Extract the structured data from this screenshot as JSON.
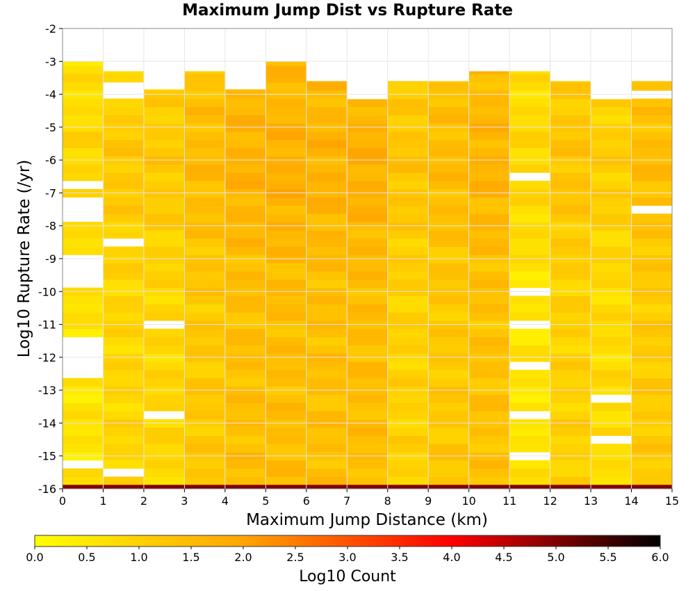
{
  "chart_data": {
    "type": "heatmap",
    "title": "Maximum Jump Dist vs Rupture Rate",
    "xlabel": "Maximum Jump Distance (km)",
    "ylabel": "Log10 Rupture Rate (/yr)",
    "xlim": [
      0,
      15
    ],
    "ylim": [
      -16,
      -2
    ],
    "x_ticks": [
      "0",
      "1",
      "2",
      "3",
      "4",
      "5",
      "6",
      "7",
      "8",
      "9",
      "10",
      "11",
      "12",
      "13",
      "14",
      "15"
    ],
    "y_ticks": [
      "-2",
      "-3",
      "-4",
      "-5",
      "-6",
      "-7",
      "-8",
      "-9",
      "-10",
      "-11",
      "-12",
      "-13",
      "-14",
      "-15",
      "-16"
    ],
    "x_bin_width": 1,
    "y_bin_height": 0.25,
    "colorbar": {
      "label": "Log10 Count",
      "range": [
        0,
        6
      ],
      "ticks": [
        "0.0",
        "0.5",
        "1.0",
        "1.5",
        "2.0",
        "2.5",
        "3.0",
        "3.5",
        "4.0",
        "4.5",
        "5.0",
        "5.5",
        "6.0"
      ],
      "colors": [
        "#ffff00",
        "#ffa500",
        "#ff0000",
        "#000000"
      ]
    },
    "bottom_row": {
      "y_range": [
        -16,
        -15.88
      ],
      "value": 5.0
    },
    "columns": [
      {
        "x_range": [
          0,
          1
        ],
        "top": -3.0,
        "base": 0.6,
        "empty": [
          [
            -6.7,
            -6.95
          ],
          [
            -7.2,
            -7.8
          ],
          [
            -8.95,
            -9.85
          ],
          [
            -11.5,
            -12.7
          ],
          [
            -15.1,
            -15.35
          ]
        ]
      },
      {
        "x_range": [
          1,
          2
        ],
        "top": -3.3,
        "base": 0.9,
        "empty": [
          [
            -3.6,
            -4.1
          ],
          [
            -8.4,
            -8.65
          ],
          [
            -15.5,
            -15.75
          ]
        ]
      },
      {
        "x_range": [
          2,
          3
        ],
        "top": -3.85,
        "base": 0.9,
        "empty": [
          [
            -10.8,
            -11.05
          ],
          [
            -13.6,
            -13.85
          ]
        ]
      },
      {
        "x_range": [
          3,
          4
        ],
        "top": -3.3,
        "base": 1.2,
        "empty": []
      },
      {
        "x_range": [
          4,
          5
        ],
        "top": -3.85,
        "base": 1.4,
        "empty": []
      },
      {
        "x_range": [
          5,
          6
        ],
        "top": -3.0,
        "base": 1.45,
        "empty": []
      },
      {
        "x_range": [
          6,
          7
        ],
        "top": -3.6,
        "base": 1.4,
        "empty": []
      },
      {
        "x_range": [
          7,
          8
        ],
        "top": -4.15,
        "base": 1.45,
        "empty": []
      },
      {
        "x_range": [
          8,
          9
        ],
        "top": -3.6,
        "base": 1.0,
        "empty": []
      },
      {
        "x_range": [
          9,
          10
        ],
        "top": -3.6,
        "base": 1.2,
        "empty": []
      },
      {
        "x_range": [
          10,
          11
        ],
        "top": -3.3,
        "base": 1.35,
        "empty": []
      },
      {
        "x_range": [
          11,
          12
        ],
        "top": -3.3,
        "base": 0.6,
        "empty": [
          [
            -6.45,
            -6.7
          ],
          [
            -9.85,
            -10.1
          ],
          [
            -10.8,
            -11.05
          ],
          [
            -12.2,
            -12.45
          ],
          [
            -13.6,
            -13.85
          ],
          [
            -14.8,
            -15.05
          ]
        ]
      },
      {
        "x_range": [
          12,
          13
        ],
        "top": -3.6,
        "base": 1.0,
        "empty": []
      },
      {
        "x_range": [
          13,
          14
        ],
        "top": -4.15,
        "base": 0.8,
        "empty": [
          [
            -13.05,
            -13.3
          ],
          [
            -14.4,
            -14.65
          ]
        ]
      },
      {
        "x_range": [
          14,
          15
        ],
        "top": -3.6,
        "base": 1.15,
        "empty": [
          [
            -3.85,
            -4.05
          ],
          [
            -7.5,
            -7.75
          ]
        ]
      }
    ]
  }
}
